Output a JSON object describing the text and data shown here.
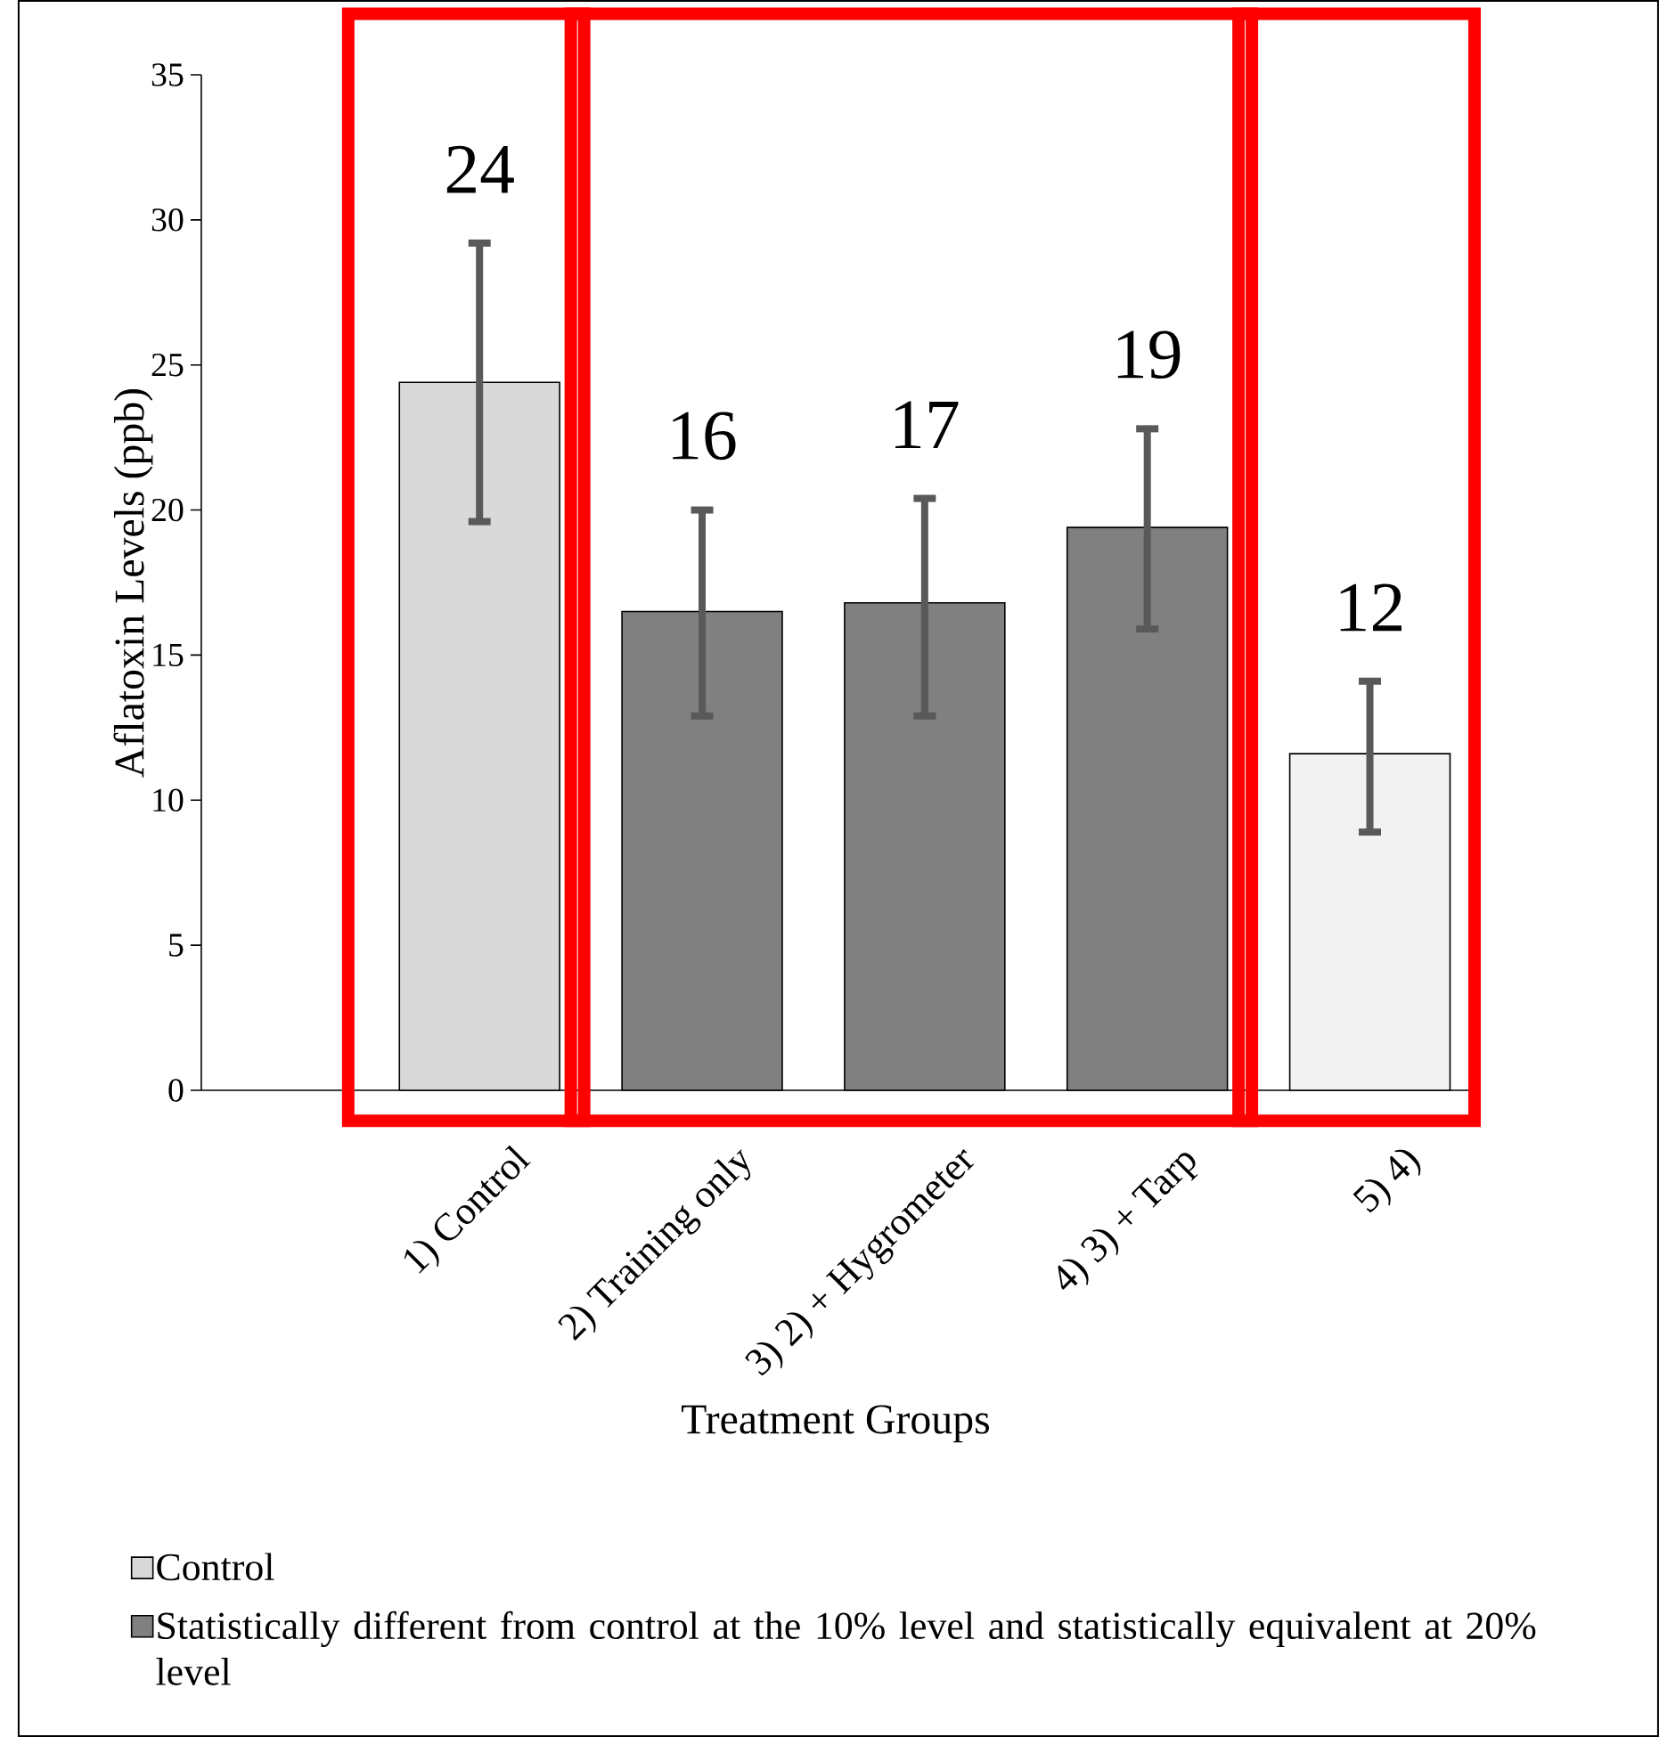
{
  "chart_data": {
    "type": "bar",
    "xlabel": "Treatment Groups",
    "ylabel": "Aflatoxin Levels (ppb)",
    "categories": [
      "1) Control",
      "2) Training only",
      "3) 2) + Hygrometer",
      "4) 3) + Tarp",
      "5) 4)"
    ],
    "series": [
      {
        "name": "Control",
        "color": "#d9d9d9",
        "values": [
          24.4,
          null,
          null,
          null,
          null
        ],
        "errors": [
          [
            19.6,
            29.2
          ],
          null,
          null,
          null,
          null
        ],
        "value_labels": [
          "24",
          null,
          null,
          null,
          null
        ]
      },
      {
        "name": "Statistically different from control at the 10% level and statistically equivalent at 20% level",
        "color": "#808080",
        "values": [
          null,
          16.5,
          16.8,
          19.4,
          null
        ],
        "errors": [
          null,
          [
            12.9,
            20.0
          ],
          [
            12.9,
            20.4
          ],
          [
            15.9,
            22.8
          ],
          null
        ],
        "value_labels": [
          null,
          "16",
          "17",
          "19",
          null
        ]
      },
      {
        "color": "#f2f2f2",
        "values": [
          null,
          null,
          null,
          null,
          11.6
        ],
        "errors": [
          null,
          null,
          null,
          null,
          [
            8.9,
            14.1
          ]
        ],
        "value_labels": [
          null,
          null,
          null,
          null,
          "12"
        ]
      }
    ],
    "ylim": [
      0,
      35
    ],
    "yticks": [
      0,
      5,
      10,
      15,
      20,
      25,
      30,
      35
    ],
    "grid": false,
    "legend": "bottom"
  }
}
